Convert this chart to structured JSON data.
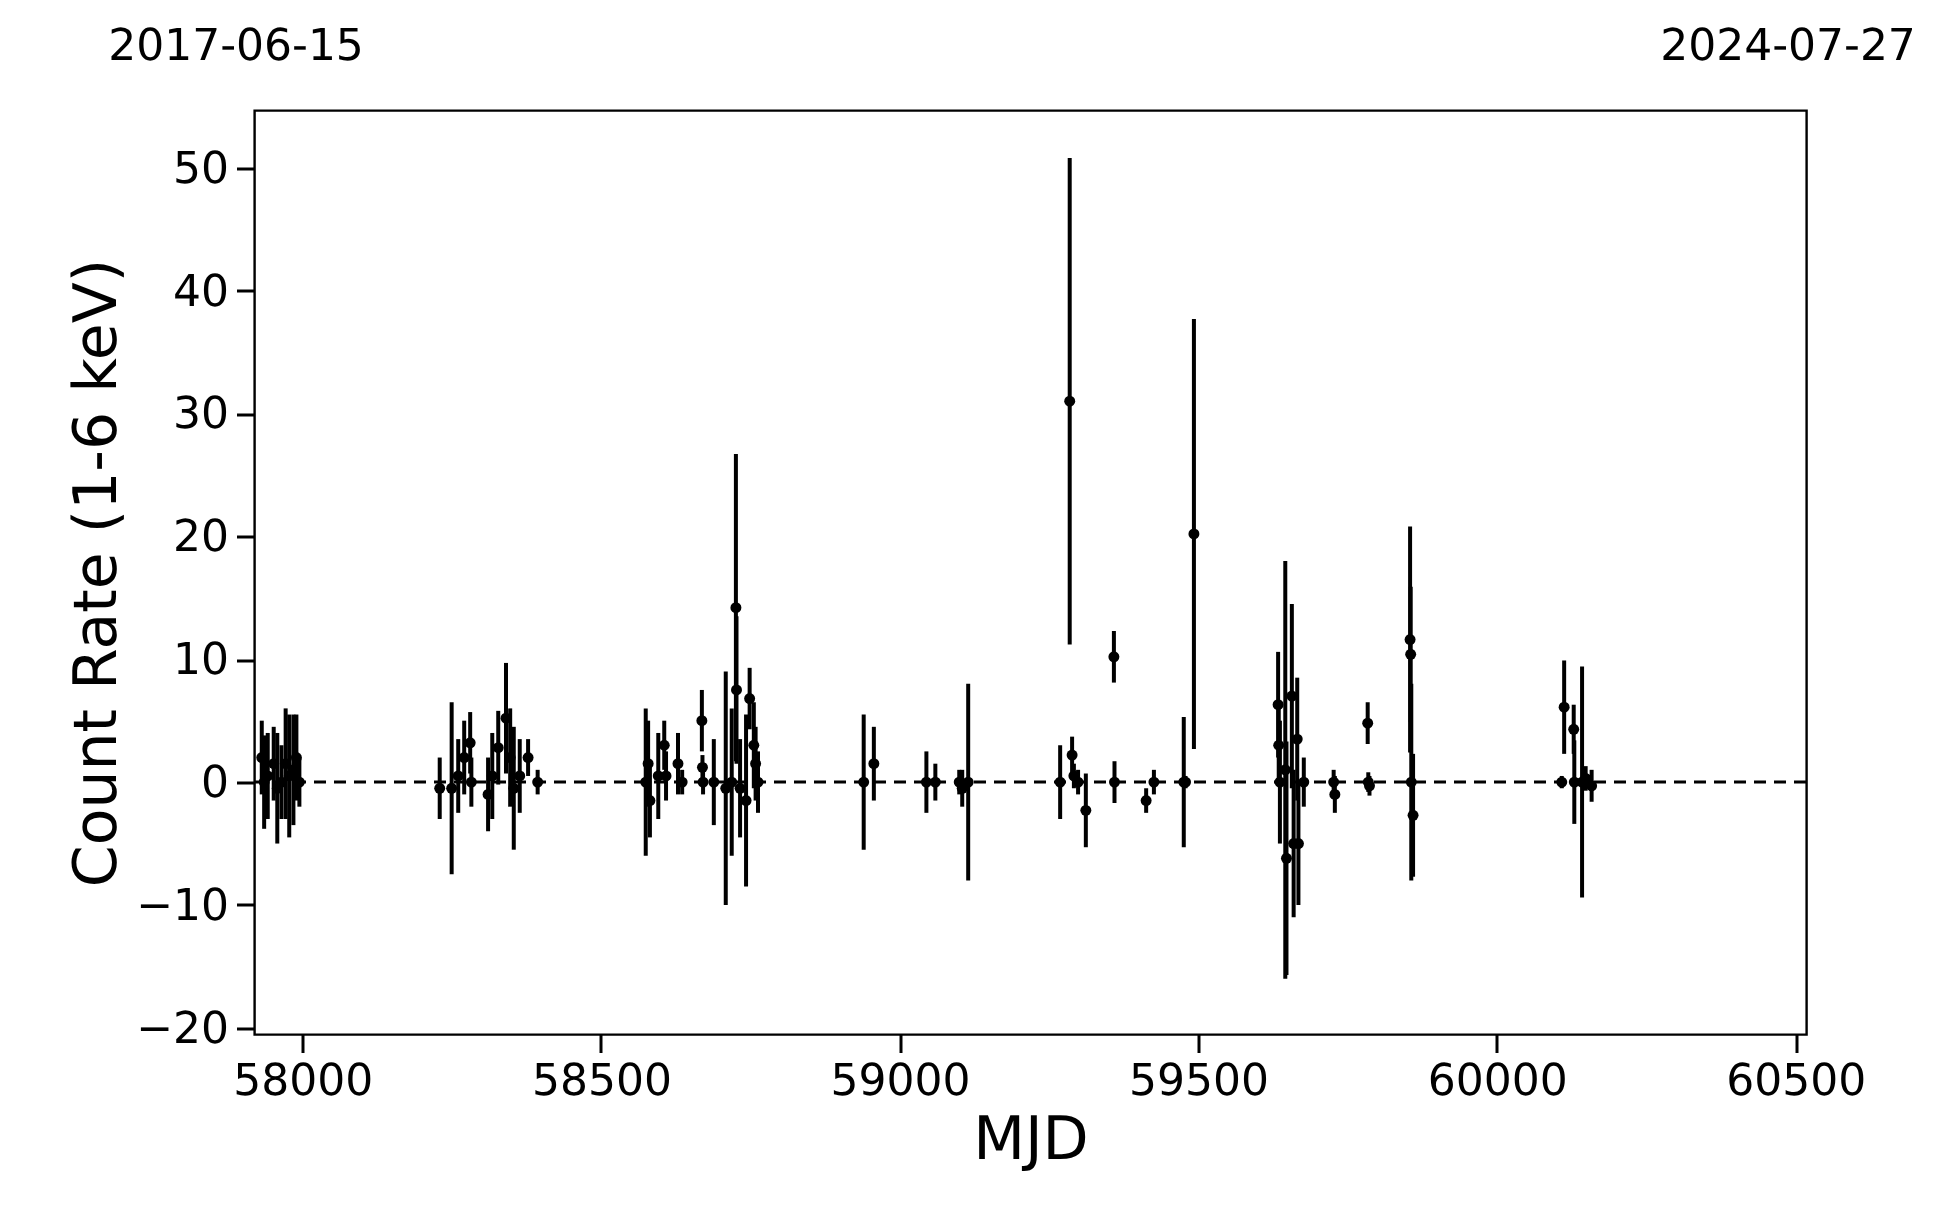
{
  "chart_data": {
    "type": "scatter",
    "xlabel": "MJD",
    "ylabel": "Count Rate (1-6 keV)",
    "xlim": [
      57919,
      60518
    ],
    "xticks": [
      58000,
      58500,
      59000,
      59500,
      60000,
      60500
    ],
    "ylim": [
      -20.5,
      54.7
    ],
    "yticks": [
      -20,
      -10,
      0,
      10,
      20,
      30,
      40,
      50
    ],
    "annotations": [
      "2017-06-15",
      "2024-07-27"
    ],
    "marker": "circle",
    "ref_lines": [
      {
        "axis": "y",
        "value": 0,
        "color": "#000000",
        "line_style": "dashed"
      }
    ],
    "series": [
      {
        "color": "#000000",
        "x": [
          57932,
          57936,
          57942,
          57952,
          57958,
          57965,
          57972,
          57978,
          57985,
          57990,
          57995,
          58230,
          58250,
          58261,
          58271,
          58281,
          58283,
          58311,
          58318,
          58328,
          58341,
          58348,
          58354,
          58364,
          58378,
          58394,
          58575,
          58579,
          58582,
          58596,
          58606,
          58609,
          58629,
          58636,
          58669,
          58670,
          58671,
          58689,
          58709,
          58719,
          58726,
          58727,
          58733,
          58743,
          58749,
          58756,
          58759,
          58763,
          58940,
          58957,
          59045,
          59060,
          59100,
          59105,
          59115,
          59269,
          59285,
          59289,
          59292,
          59299,
          59312,
          59359,
          59360,
          59413,
          59426,
          59476,
          59479,
          59493,
          59634,
          59635,
          59637,
          59646,
          59648,
          59657,
          59660,
          59666,
          59668,
          59677,
          59727,
          59729,
          59784,
          59785,
          59787,
          59855,
          59856,
          59857,
          59860,
          60109,
          60113,
          60129,
          60130,
          60143,
          60149,
          60159
        ],
        "values": [
          2.0,
          0,
          0.5,
          1.5,
          -0.5,
          0,
          1.5,
          0.5,
          1.0,
          2.0,
          0,
          -0.5,
          -0.5,
          0.5,
          2.0,
          3.2,
          0,
          -1,
          0.5,
          2.8,
          5.2,
          2,
          -0.5,
          0.5,
          2.0,
          0,
          0,
          1.5,
          -1.5,
          0.5,
          3.0,
          0.5,
          1.5,
          0,
          5.0,
          1.2,
          0,
          0,
          -0.5,
          0,
          14.2,
          7.5,
          -0.5,
          -1.5,
          6.8,
          3,
          1.5,
          0,
          0,
          1.5,
          0,
          0,
          0,
          -0.5,
          0,
          0,
          31,
          2.2,
          0.5,
          0,
          -2.3,
          10.2,
          0,
          -1.5,
          0,
          0,
          0,
          20.2,
          6.3,
          3,
          0,
          1,
          -6.2,
          7,
          -5,
          3.5,
          -5,
          0,
          0,
          -1,
          4.8,
          0,
          -0.3,
          11.6,
          10.4,
          0,
          -2.7,
          0,
          6.1,
          4.3,
          0,
          0,
          0.3,
          -0.3
        ],
        "errors": [
          3.0,
          3.8,
          3.5,
          3.0,
          4.5,
          3.0,
          4.5,
          5.0,
          4.5,
          3.5,
          2.0,
          2.5,
          7,
          3,
          3,
          2.5,
          2,
          3,
          3.5,
          3,
          4.5,
          4,
          5,
          3,
          1.5,
          1,
          6,
          3.5,
          3,
          3.5,
          2,
          2,
          2.5,
          1,
          2.5,
          1,
          1,
          3.5,
          9.5,
          6,
          12.5,
          6,
          4,
          7,
          2.5,
          3.5,
          3,
          2.5,
          5.5,
          3,
          2.5,
          1.5,
          1,
          1.5,
          8,
          3,
          19.8,
          1.5,
          1,
          1,
          3,
          2.1,
          1.7,
          1,
          1,
          5.3,
          0.5,
          17.5,
          4.3,
          3,
          5,
          17,
          9.5,
          7.5,
          6,
          5,
          5,
          2,
          1,
          1.5,
          1.7,
          0.8,
          0.8,
          9.2,
          5.5,
          8,
          5,
          0.5,
          3.8,
          2.0,
          3.4,
          9.4,
          1,
          1.3
        ]
      }
    ]
  }
}
